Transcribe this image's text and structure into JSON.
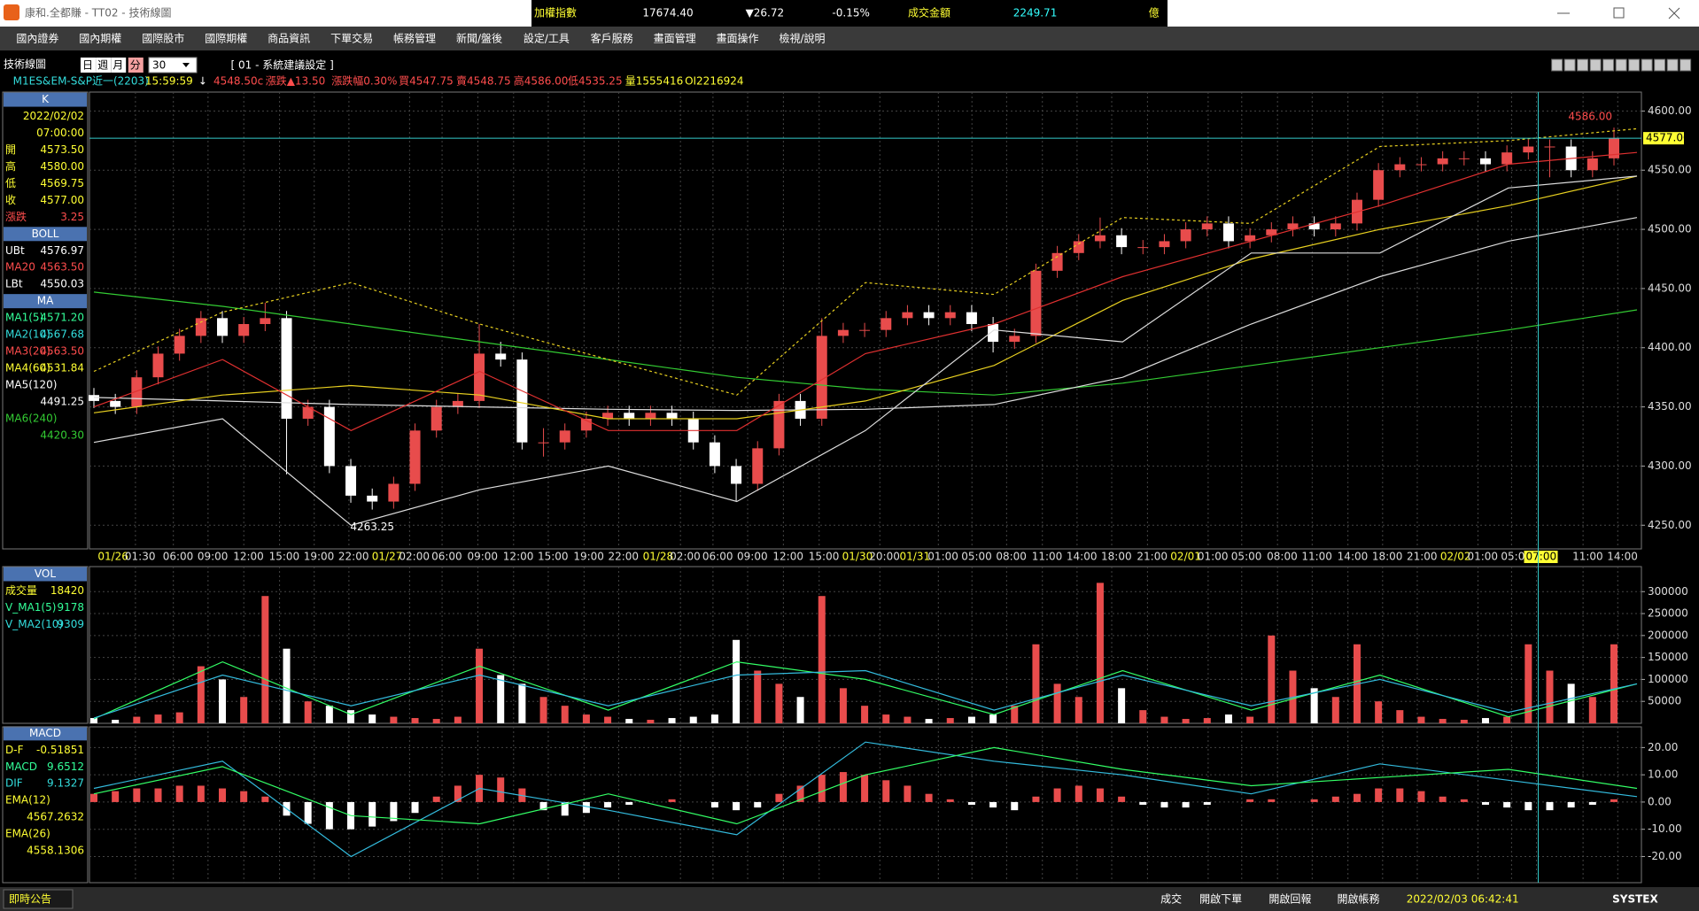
{
  "title_bar": {
    "app_title": "康和.全都賺 - TT02 - 技術線圖",
    "ticker": [
      {
        "text": "加權指數",
        "color": "#ffff33"
      },
      {
        "text": "17674.40",
        "color": "#ffffff"
      },
      {
        "text": "▼26.72",
        "color": "#ffffff"
      },
      {
        "text": "-0.15%",
        "color": "#ffffff"
      },
      {
        "text": "成交金額",
        "color": "#ffff33"
      },
      {
        "text": "2249.71",
        "color": "#33ffff"
      },
      {
        "text": "億",
        "color": "#ffff33"
      }
    ]
  },
  "menu": [
    "國內證券",
    "國內期權",
    "國際股市",
    "國際期權",
    "商品資訊",
    "下單交易",
    "帳務管理",
    "新聞/盤後",
    "設定/工具",
    "客戶服務",
    "畫面管理",
    "畫面操作",
    "檢視/說明"
  ],
  "toolbar": {
    "title": "技術線圖",
    "periods": [
      "日",
      "週",
      "月",
      "分"
    ],
    "selected_period_index": 3,
    "interval": "30",
    "setting": "[ 01 - 系統建議設定 ]"
  },
  "quote_line": [
    {
      "text": "M1ES&",
      "color": "#33dddd"
    },
    {
      "text": "EM-S&P近一(2203)",
      "color": "#33dddd"
    },
    {
      "text": "15:59:59",
      "color": "#ffff33"
    },
    {
      "text": "↓",
      "color": "#ffffff"
    },
    {
      "text": "4548.50c",
      "color": "#ff4d4d"
    },
    {
      "text": "漲跌▲13.50",
      "color": "#ff4d4d"
    },
    {
      "text": "漲跌幅0.30%",
      "color": "#ff4d4d"
    },
    {
      "text": "買4547.75",
      "color": "#ff4d4d"
    },
    {
      "text": "賣4548.75",
      "color": "#ff4d4d"
    },
    {
      "text": "高4586.00",
      "color": "#ff4d4d"
    },
    {
      "text": "低4535.25",
      "color": "#ff4d4d"
    },
    {
      "text": "量1555416",
      "color": "#ffff33"
    },
    {
      "text": "OI2216924",
      "color": "#ffff33"
    }
  ],
  "info_panel": {
    "main": [
      {
        "title": "K",
        "rows": [
          {
            "value": "2022/02/02",
            "color": "#ffff33"
          },
          {
            "value": "07:00:00",
            "color": "#ffff33"
          },
          {
            "label": "開",
            "value": "4573.50",
            "color": "#ffff33"
          },
          {
            "label": "高",
            "value": "4580.00",
            "color": "#ffff33"
          },
          {
            "label": "低",
            "value": "4569.75",
            "color": "#ffff33"
          },
          {
            "label": "收",
            "value": "4577.00",
            "color": "#ffff33"
          },
          {
            "label": "漲跌",
            "value": "3.25",
            "color": "#ff4d4d"
          }
        ]
      },
      {
        "title": "BOLL",
        "rows": [
          {
            "label": "UBt",
            "value": "4576.97",
            "color": "#ffffff"
          },
          {
            "label": "MA20",
            "value": "4563.50",
            "color": "#ff4d4d"
          },
          {
            "label": "LBt",
            "value": "4550.03",
            "color": "#ffffff"
          }
        ]
      },
      {
        "title": "MA",
        "rows": [
          {
            "label": "MA1(5)",
            "value": "4571.20",
            "color": "#33ff99"
          },
          {
            "label": "MA2(10)",
            "value": "4567.68",
            "color": "#33dddd"
          },
          {
            "label": "MA3(20)",
            "value": "4563.50",
            "color": "#ff4d4d"
          },
          {
            "label": "MA4(60)",
            "value": "4531.84",
            "color": "#ffff33"
          },
          {
            "label": "MA5(120)",
            "color": "#ffffff"
          },
          {
            "value": "4491.25",
            "color": "#ffffff"
          },
          {
            "label": "MA6(240)",
            "color": "#33cc33"
          },
          {
            "value": "4420.30",
            "color": "#33cc33"
          }
        ]
      }
    ],
    "vol": [
      {
        "title": "VOL",
        "rows": [
          {
            "label": "成交量",
            "value": "18420",
            "color": "#ffff33"
          },
          {
            "label": "V_MA1(5)",
            "value": "9178",
            "color": "#33ff99"
          },
          {
            "label": "V_MA2(10)",
            "value": "9309",
            "color": "#33dddd"
          }
        ]
      }
    ],
    "macd": [
      {
        "title": "MACD",
        "rows": [
          {
            "label": "D-F",
            "value": "-0.51851",
            "color": "#ffff33"
          },
          {
            "label": "MACD",
            "value": "9.6512",
            "color": "#33ff99"
          },
          {
            "label": "DIF",
            "value": "9.1327",
            "color": "#33dddd"
          },
          {
            "label": "EMA(12)",
            "color": "#ffff33"
          },
          {
            "value": "4567.2632",
            "color": "#ffff33"
          },
          {
            "label": "EMA(26)",
            "color": "#ffff33"
          },
          {
            "value": "4558.1306",
            "color": "#ffff33"
          }
        ]
      }
    ]
  },
  "chart_data": [
    {
      "type": "candlestick",
      "up_color": "#e84c4c",
      "down_color": "#ffffff",
      "candles": [
        [
          4360,
          4366,
          4349,
          4355
        ],
        [
          4355,
          4361,
          4344,
          4350
        ],
        [
          4350,
          4381,
          4344,
          4375
        ],
        [
          4375,
          4401,
          4369,
          4395
        ],
        [
          4395,
          4416,
          4389,
          4410
        ],
        [
          4410,
          4431,
          4404,
          4425
        ],
        [
          4425,
          4431,
          4404,
          4410
        ],
        [
          4410,
          4426,
          4404,
          4420
        ],
        [
          4420,
          4438,
          4414,
          4425
        ],
        [
          4425,
          4431,
          4293,
          4340
        ],
        [
          4340,
          4356,
          4334,
          4350
        ],
        [
          4350,
          4356,
          4294,
          4300
        ],
        [
          4300,
          4306,
          4269,
          4275
        ],
        [
          4275,
          4281,
          4263.25,
          4270
        ],
        [
          4270,
          4291,
          4264,
          4285
        ],
        [
          4285,
          4336,
          4279,
          4330
        ],
        [
          4330,
          4356,
          4324,
          4350
        ],
        [
          4350,
          4361,
          4344,
          4355
        ],
        [
          4355,
          4420,
          4349,
          4395
        ],
        [
          4395,
          4405,
          4384,
          4390
        ],
        [
          4390,
          4396,
          4314,
          4320
        ],
        [
          4320,
          4332,
          4308,
          4320
        ],
        [
          4320,
          4336,
          4314,
          4330
        ],
        [
          4330,
          4346,
          4324,
          4340
        ],
        [
          4340,
          4351,
          4334,
          4345
        ],
        [
          4345,
          4351,
          4334,
          4340
        ],
        [
          4340,
          4351,
          4334,
          4345
        ],
        [
          4345,
          4351,
          4334,
          4340
        ],
        [
          4340,
          4346,
          4314,
          4320
        ],
        [
          4320,
          4326,
          4294,
          4300
        ],
        [
          4300,
          4306,
          4270,
          4285
        ],
        [
          4285,
          4321,
          4279,
          4315
        ],
        [
          4315,
          4361,
          4309,
          4355
        ],
        [
          4355,
          4361,
          4334,
          4340
        ],
        [
          4340,
          4425,
          4334,
          4410
        ],
        [
          4410,
          4421,
          4404,
          4415
        ],
        [
          4415,
          4421,
          4409,
          4415
        ],
        [
          4415,
          4431,
          4409,
          4425
        ],
        [
          4425,
          4436,
          4419,
          4430
        ],
        [
          4430,
          4436,
          4419,
          4425
        ],
        [
          4425,
          4436,
          4419,
          4430
        ],
        [
          4430,
          4436,
          4414,
          4420
        ],
        [
          4420,
          4426,
          4396,
          4405
        ],
        [
          4405,
          4416,
          4399,
          4410
        ],
        [
          4410,
          4471,
          4404,
          4465
        ],
        [
          4465,
          4486,
          4459,
          4480
        ],
        [
          4480,
          4496,
          4474,
          4490
        ],
        [
          4490,
          4510,
          4484,
          4495
        ],
        [
          4495,
          4501,
          4479,
          4485
        ],
        [
          4485,
          4491,
          4479,
          4485
        ],
        [
          4485,
          4496,
          4479,
          4490
        ],
        [
          4490,
          4506,
          4484,
          4500
        ],
        [
          4500,
          4511,
          4494,
          4505
        ],
        [
          4505,
          4511,
          4484,
          4490
        ],
        [
          4490,
          4501,
          4484,
          4495
        ],
        [
          4495,
          4506,
          4489,
          4500
        ],
        [
          4500,
          4511,
          4494,
          4505
        ],
        [
          4505,
          4511,
          4494,
          4500
        ],
        [
          4500,
          4511,
          4494,
          4505
        ],
        [
          4505,
          4531,
          4499,
          4525
        ],
        [
          4525,
          4556,
          4519,
          4550
        ],
        [
          4550,
          4561,
          4544,
          4555
        ],
        [
          4555,
          4561,
          4549,
          4555
        ],
        [
          4555,
          4566,
          4549,
          4560
        ],
        [
          4560,
          4566,
          4554,
          4560
        ],
        [
          4560,
          4566,
          4549,
          4555
        ],
        [
          4555,
          4571,
          4549,
          4565
        ],
        [
          4565,
          4576,
          4559,
          4570
        ],
        [
          4570,
          4576,
          4544,
          4570
        ],
        [
          4570,
          4576,
          4544,
          4550
        ],
        [
          4550,
          4566,
          4544,
          4560
        ],
        [
          4560,
          4586,
          4554,
          4577
        ]
      ],
      "lines": [
        {
          "color": "#33cc33",
          "values": [
            4447,
            4435,
            4420,
            4405,
            4390,
            4375,
            4365,
            4360,
            4370,
            4385,
            4400,
            4415,
            4432
          ]
        },
        {
          "color": "#dddddd",
          "values": [
            4358,
            4355,
            4352,
            4350,
            4348,
            4347,
            4348,
            4352,
            4375,
            4420,
            4460,
            4490,
            4510
          ]
        },
        {
          "color": "#e8d020",
          "values": [
            4345,
            4360,
            4368,
            4360,
            4340,
            4340,
            4355,
            4385,
            4440,
            4475,
            4500,
            4520,
            4545
          ]
        },
        {
          "color": "#e03030",
          "values": [
            4350,
            4390,
            4330,
            4380,
            4330,
            4330,
            4395,
            4420,
            4460,
            4490,
            4520,
            4555,
            4565
          ]
        },
        {
          "color": "#e8d020",
          "dash": true,
          "values": [
            4380,
            4430,
            4455,
            4420,
            4390,
            4360,
            4455,
            4445,
            4510,
            4505,
            4570,
            4575,
            4585
          ]
        },
        {
          "color": "#dddddd",
          "values": [
            4320,
            4340,
            4250,
            4280,
            4300,
            4270,
            4330,
            4415,
            4405,
            4480,
            4480,
            4535,
            4545
          ]
        }
      ],
      "ylim": [
        4230,
        4616
      ],
      "yticks": [
        {
          "value": 4250,
          "label": "4250.00"
        },
        {
          "value": 4300,
          "label": "4300.00"
        },
        {
          "value": 4350,
          "label": "4350.00"
        },
        {
          "value": 4400,
          "label": "4400.00"
        },
        {
          "value": 4450,
          "label": "4450.00"
        },
        {
          "value": 4500,
          "label": "4500.00"
        },
        {
          "value": 4550,
          "label": "4550.00"
        },
        {
          "value": 4600,
          "label": "4600.00"
        }
      ],
      "grid": true,
      "x_labels": [
        "01/26",
        "01:30",
        "06:00",
        "09:00",
        "12:00",
        "15:00",
        "19:00",
        "22:00",
        "01/27",
        "02:00",
        "06:00",
        "09:00",
        "12:00",
        "15:00",
        "19:00",
        "22:00",
        "01/28",
        "02:00",
        "06:00",
        "09:00",
        "12:00",
        "15:00",
        "01/30",
        "20:00",
        "01/31",
        "01:00",
        "05:00",
        "08:00",
        "11:00",
        "14:00",
        "18:00",
        "21:00",
        "02/01",
        "01:00",
        "05:00",
        "08:00",
        "11:00",
        "14:00",
        "18:00",
        "21:00",
        "02/02",
        "01:00",
        "05:00",
        "07:00",
        "11:00",
        "14:00"
      ],
      "annotations": [
        {
          "value": 4586,
          "label": "4586.00",
          "color": "#ff4d4d"
        },
        {
          "value": 4263.25,
          "label": "4263.25",
          "color": "#ffffff"
        }
      ],
      "last_price": {
        "value": 4577,
        "label": "4577.00"
      }
    },
    {
      "type": "bar",
      "up_color": "#e84c4c",
      "down_color": "#ffffff",
      "values": [
        12000,
        8000,
        15000,
        20000,
        25000,
        130000,
        100000,
        60000,
        290000,
        170000,
        50000,
        40000,
        30000,
        20000,
        15000,
        12000,
        10000,
        15000,
        170000,
        110000,
        90000,
        60000,
        40000,
        20000,
        15000,
        10000,
        8000,
        12000,
        15000,
        20000,
        190000,
        120000,
        90000,
        60000,
        290000,
        80000,
        40000,
        20000,
        15000,
        10000,
        12000,
        15000,
        20000,
        40000,
        180000,
        90000,
        60000,
        320000,
        80000,
        30000,
        15000,
        10000,
        12000,
        20000,
        15000,
        200000,
        120000,
        80000,
        60000,
        180000,
        50000,
        30000,
        15000,
        10000,
        8000,
        12000,
        15000,
        180000,
        120000,
        90000,
        60000,
        180000
      ],
      "lines": [
        {
          "color": "#33ff66",
          "values": [
            10000,
            140000,
            20000,
            130000,
            30000,
            140000,
            100000,
            20000,
            120000,
            30000,
            110000,
            15000,
            90000
          ]
        },
        {
          "color": "#33bbdd",
          "values": [
            12000,
            110000,
            40000,
            110000,
            40000,
            110000,
            120000,
            30000,
            110000,
            40000,
            100000,
            25000,
            90000
          ]
        }
      ],
      "ylim": [
        0,
        357000
      ],
      "yticks": [
        50000,
        100000,
        150000,
        200000,
        250000,
        300000
      ],
      "grid": true
    },
    {
      "type": "bar",
      "up_color": "#e84c4c",
      "down_color": "#ffffff",
      "values": [
        3,
        4,
        5,
        5,
        6,
        6,
        5,
        4,
        2,
        -5,
        -8,
        -10,
        -10,
        -9,
        -7,
        -4,
        2,
        6,
        10,
        9,
        5,
        -3,
        -5,
        -4,
        -2,
        -1,
        0,
        1,
        0,
        -2,
        -3,
        -2,
        3,
        6,
        10,
        11,
        10,
        8,
        6,
        3,
        1,
        -1,
        -2,
        -3,
        2,
        5,
        6,
        5,
        2,
        -1,
        -2,
        -2,
        -1,
        0,
        1,
        1,
        0,
        1,
        2,
        3,
        5,
        5,
        4,
        2,
        1,
        -1,
        -2,
        -3,
        -3,
        -2,
        -1,
        1
      ],
      "lines": [
        {
          "color": "#33bbdd",
          "values": [
            5,
            15,
            -20,
            5,
            -3,
            -12,
            22,
            15,
            10,
            3,
            14,
            8,
            2
          ]
        },
        {
          "color": "#33ff66",
          "values": [
            3,
            13,
            -5,
            -8,
            3,
            -8,
            10,
            20,
            12,
            6,
            9,
            12,
            5
          ]
        }
      ],
      "ylim": [
        -29.6,
        27.6
      ],
      "yticks": [
        {
          "value": -20,
          "label": "-20.00"
        },
        {
          "value": -10,
          "label": "-10.00"
        },
        {
          "value": 0,
          "label": "0.00"
        },
        {
          "value": 10,
          "label": "10.00"
        },
        {
          "value": 20,
          "label": "20.00"
        }
      ],
      "grid": true
    }
  ],
  "status_bar": {
    "left": "即時公告",
    "items": [
      "成交",
      "開啟下單",
      "開啟回報",
      "開啟帳務"
    ],
    "clock": "2022/02/03 06:42:41",
    "brand": "SYSTEX"
  }
}
